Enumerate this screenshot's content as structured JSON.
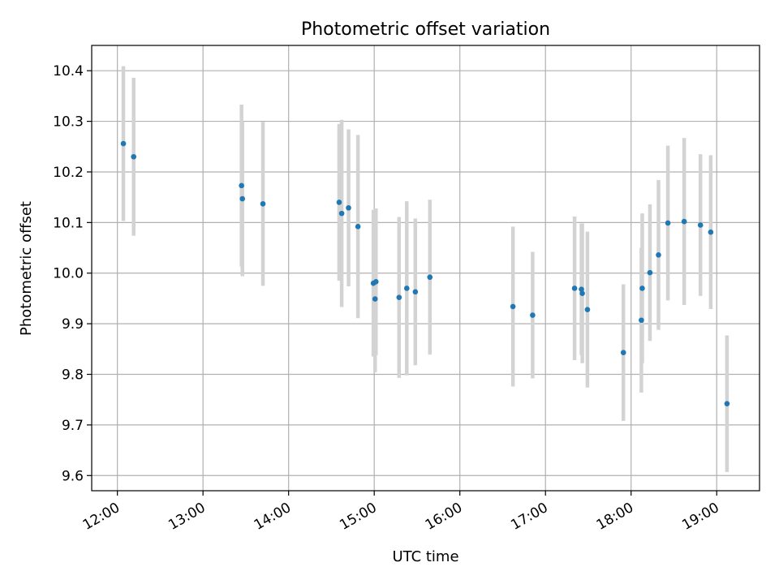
{
  "chart_data": {
    "type": "scatter",
    "title": "Photometric offset variation",
    "xlabel": "UTC time",
    "ylabel": "Photometric offset",
    "x_unit": "hours UTC",
    "xlim": [
      11.7,
      19.5
    ],
    "ylim": [
      9.57,
      10.45
    ],
    "xticks": [
      {
        "value": 12,
        "label": "12:00"
      },
      {
        "value": 13,
        "label": "13:00"
      },
      {
        "value": 14,
        "label": "14:00"
      },
      {
        "value": 15,
        "label": "15:00"
      },
      {
        "value": 16,
        "label": "16:00"
      },
      {
        "value": 17,
        "label": "17:00"
      },
      {
        "value": 18,
        "label": "18:00"
      },
      {
        "value": 19,
        "label": "19:00"
      }
    ],
    "yticks": [
      {
        "value": 9.6,
        "label": "9.6"
      },
      {
        "value": 9.7,
        "label": "9.7"
      },
      {
        "value": 9.8,
        "label": "9.8"
      },
      {
        "value": 9.9,
        "label": "9.9"
      },
      {
        "value": 10.0,
        "label": "10.0"
      },
      {
        "value": 10.1,
        "label": "10.1"
      },
      {
        "value": 10.2,
        "label": "10.2"
      },
      {
        "value": 10.3,
        "label": "10.3"
      },
      {
        "value": 10.4,
        "label": "10.4"
      }
    ],
    "grid": true,
    "colors": {
      "marker": "#1f77b4",
      "errorbar": "#d3d3d3",
      "grid": "#b0b0b0"
    },
    "points": [
      {
        "x": 12.07,
        "y": 10.256,
        "err": 0.153
      },
      {
        "x": 12.19,
        "y": 10.23,
        "err": 0.156
      },
      {
        "x": 13.45,
        "y": 10.173,
        "err": 0.16
      },
      {
        "x": 13.46,
        "y": 10.147,
        "err": 0.153
      },
      {
        "x": 13.7,
        "y": 10.137,
        "err": 0.162
      },
      {
        "x": 14.59,
        "y": 10.14,
        "err": 0.155
      },
      {
        "x": 14.62,
        "y": 10.118,
        "err": 0.185
      },
      {
        "x": 14.7,
        "y": 10.129,
        "err": 0.155
      },
      {
        "x": 14.81,
        "y": 10.092,
        "err": 0.181
      },
      {
        "x": 14.99,
        "y": 9.98,
        "err": 0.145
      },
      {
        "x": 15.02,
        "y": 9.983,
        "err": 0.145
      },
      {
        "x": 15.01,
        "y": 9.949,
        "err": 0.145
      },
      {
        "x": 15.29,
        "y": 9.952,
        "err": 0.159
      },
      {
        "x": 15.38,
        "y": 9.97,
        "err": 0.172
      },
      {
        "x": 15.48,
        "y": 9.963,
        "err": 0.145
      },
      {
        "x": 15.65,
        "y": 9.992,
        "err": 0.153
      },
      {
        "x": 16.62,
        "y": 9.934,
        "err": 0.158
      },
      {
        "x": 16.85,
        "y": 9.917,
        "err": 0.125
      },
      {
        "x": 17.34,
        "y": 9.97,
        "err": 0.142
      },
      {
        "x": 17.42,
        "y": 9.968,
        "err": 0.13
      },
      {
        "x": 17.43,
        "y": 9.96,
        "err": 0.138
      },
      {
        "x": 17.49,
        "y": 9.928,
        "err": 0.154
      },
      {
        "x": 17.91,
        "y": 9.843,
        "err": 0.135
      },
      {
        "x": 18.12,
        "y": 9.907,
        "err": 0.143
      },
      {
        "x": 18.13,
        "y": 9.97,
        "err": 0.148
      },
      {
        "x": 18.22,
        "y": 10.001,
        "err": 0.135
      },
      {
        "x": 18.32,
        "y": 10.036,
        "err": 0.148
      },
      {
        "x": 18.43,
        "y": 10.099,
        "err": 0.153
      },
      {
        "x": 18.62,
        "y": 10.102,
        "err": 0.165
      },
      {
        "x": 18.81,
        "y": 10.095,
        "err": 0.14
      },
      {
        "x": 18.93,
        "y": 10.081,
        "err": 0.152
      },
      {
        "x": 19.12,
        "y": 9.742,
        "err": 0.135
      }
    ]
  }
}
